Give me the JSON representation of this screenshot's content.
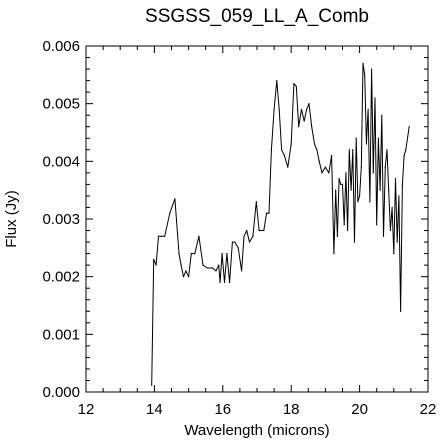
{
  "chart_data": {
    "type": "line",
    "title": "SSGSS_059_LL_A_Comb",
    "xlabel": "Wavelength (microns)",
    "ylabel": "Flux (Jy)",
    "xlim": [
      12,
      22
    ],
    "ylim": [
      0,
      0.006
    ],
    "x_ticks": [
      12,
      14,
      16,
      18,
      20,
      22
    ],
    "y_ticks": [
      0.0,
      0.001,
      0.002,
      0.003,
      0.004,
      0.005,
      0.006
    ],
    "x_tick_labels": [
      "12",
      "14",
      "16",
      "18",
      "20",
      "22"
    ],
    "y_tick_labels": [
      "0.000",
      "0.001",
      "0.002",
      "0.003",
      "0.004",
      "0.005",
      "0.006"
    ],
    "grid": false,
    "legend": "none",
    "series": [
      {
        "color": "#000000",
        "x": [
          13.92,
          13.98,
          14.05,
          14.12,
          14.2,
          14.3,
          14.45,
          14.6,
          14.72,
          14.78,
          14.85,
          14.92,
          15.0,
          15.08,
          15.18,
          15.3,
          15.42,
          15.55,
          15.7,
          15.8,
          15.88,
          15.92,
          15.98,
          16.05,
          16.12,
          16.2,
          16.28,
          16.35,
          16.45,
          16.55,
          16.62,
          16.7,
          16.78,
          16.88,
          16.98,
          17.06,
          17.12,
          17.2,
          17.28,
          17.35,
          17.42,
          17.5,
          17.58,
          17.65,
          17.72,
          17.8,
          17.9,
          18.0,
          18.08,
          18.15,
          18.22,
          18.3,
          18.38,
          18.45,
          18.52,
          18.6,
          18.68,
          18.75,
          18.82,
          18.9,
          19.0,
          19.1,
          19.18,
          19.25,
          19.3,
          19.35,
          19.4,
          19.45,
          19.5,
          19.55,
          19.6,
          19.65,
          19.7,
          19.75,
          19.8,
          19.85,
          19.9,
          19.95,
          20.0,
          20.05,
          20.1,
          20.15,
          20.2,
          20.25,
          20.3,
          20.35,
          20.4,
          20.45,
          20.5,
          20.55,
          20.6,
          20.65,
          20.7,
          20.75,
          20.8,
          20.85,
          20.9,
          20.95,
          21.0,
          21.05,
          21.1,
          21.15,
          21.2,
          21.25,
          21.3,
          21.35,
          21.45
        ],
        "values": [
          0.00012,
          0.0023,
          0.0022,
          0.0027,
          0.0027,
          0.0027,
          0.0031,
          0.00335,
          0.0024,
          0.0022,
          0.002,
          0.0021,
          0.002,
          0.0024,
          0.0024,
          0.0027,
          0.0022,
          0.00215,
          0.00215,
          0.0021,
          0.0022,
          0.0019,
          0.0024,
          0.0019,
          0.0024,
          0.0019,
          0.0026,
          0.0026,
          0.0025,
          0.0021,
          0.0027,
          0.0028,
          0.0026,
          0.0027,
          0.0033,
          0.0028,
          0.0028,
          0.0028,
          0.0031,
          0.0031,
          0.0042,
          0.0049,
          0.0054,
          0.0049,
          0.0042,
          0.0041,
          0.0039,
          0.0043,
          0.00535,
          0.0053,
          0.0046,
          0.0049,
          0.0047,
          0.0049,
          0.005,
          0.0046,
          0.0043,
          0.0042,
          0.004,
          0.0038,
          0.0039,
          0.0038,
          0.0041,
          0.0024,
          0.0035,
          0.0027,
          0.0037,
          0.0036,
          0.0036,
          0.0029,
          0.0038,
          0.0028,
          0.0042,
          0.0035,
          0.0042,
          0.0026,
          0.0044,
          0.0033,
          0.0034,
          0.0039,
          0.0057,
          0.0055,
          0.0043,
          0.0049,
          0.0033,
          0.0056,
          0.0038,
          0.0051,
          0.0029,
          0.0044,
          0.0035,
          0.0048,
          0.0027,
          0.0039,
          0.0042,
          0.0035,
          0.0028,
          0.0032,
          0.0024,
          0.0037,
          0.0026,
          0.0034,
          0.0014,
          0.0036,
          0.0041,
          0.0042,
          0.0046
        ]
      }
    ]
  }
}
